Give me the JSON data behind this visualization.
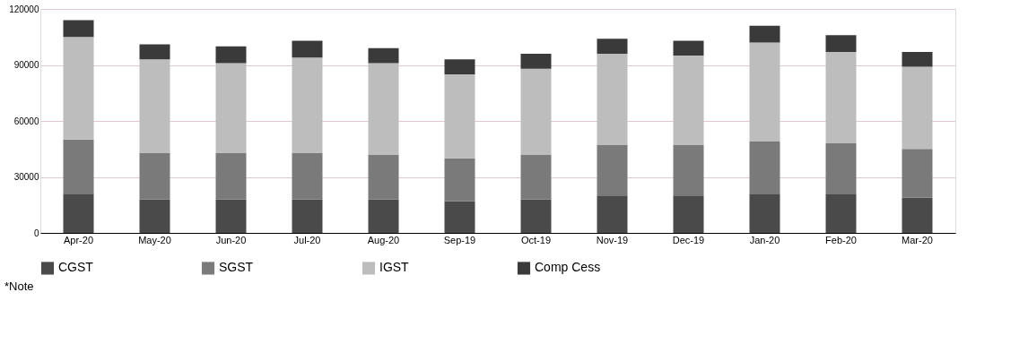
{
  "chart_data": {
    "type": "bar",
    "stacked": true,
    "categories": [
      "Apr-20",
      "May-20",
      "Jun-20",
      "Jul-20",
      "Aug-20",
      "Sep-19",
      "Oct-19",
      "Nov-19",
      "Dec-19",
      "Jan-20",
      "Feb-20",
      "Mar-20"
    ],
    "series": [
      {
        "name": "CGST",
        "color": "#4a4a4a",
        "values": [
          21000,
          18000,
          18000,
          18000,
          18000,
          17000,
          18000,
          20000,
          20000,
          21000,
          21000,
          19000
        ]
      },
      {
        "name": "SGST",
        "color": "#7a7a7a",
        "values": [
          29000,
          25000,
          25000,
          25000,
          24000,
          23000,
          24000,
          27000,
          27000,
          28000,
          27000,
          26000
        ]
      },
      {
        "name": "IGST",
        "color": "#bdbdbd",
        "values": [
          55000,
          50000,
          48000,
          51000,
          49000,
          45000,
          46000,
          49000,
          48000,
          53000,
          49000,
          44000
        ]
      },
      {
        "name": "Comp Cess",
        "color": "#3a3a3a",
        "values": [
          9000,
          8000,
          9000,
          9000,
          8000,
          8000,
          8000,
          8000,
          8000,
          9000,
          9000,
          8000
        ]
      }
    ],
    "ylim": [
      0,
      120000
    ],
    "yticks": [
      0,
      30000,
      60000,
      90000,
      120000
    ],
    "grid": "y",
    "legend": "bottom",
    "annotations": [
      "*Note"
    ]
  }
}
